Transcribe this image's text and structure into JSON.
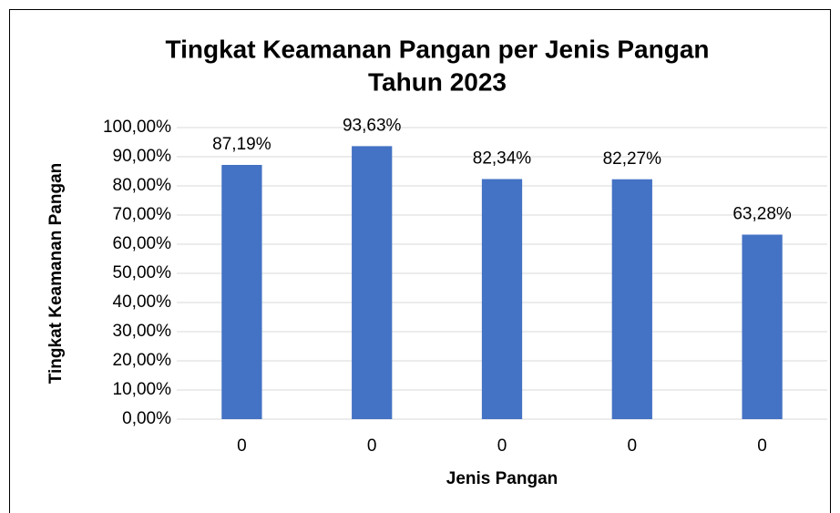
{
  "chart_data": {
    "type": "bar",
    "title": [
      "Tingkat Keamanan Pangan per Jenis Pangan",
      "Tahun 2023"
    ],
    "x_label": "Jenis Pangan",
    "y_label": "Tingkat Keamanan Pangan",
    "categories": [
      "0",
      "0",
      "0",
      "0",
      "0"
    ],
    "values": [
      87.19,
      93.63,
      82.34,
      82.27,
      63.28
    ],
    "value_labels": [
      "87,19%",
      "93,63%",
      "82,34%",
      "82,27%",
      "63,28%"
    ],
    "color": "#4472c4",
    "ylim": [
      0,
      100
    ],
    "yticks": [
      {
        "value": 0,
        "label": "0,00%"
      },
      {
        "value": 10,
        "label": "10,00%"
      },
      {
        "value": 20,
        "label": "20,00%"
      },
      {
        "value": 30,
        "label": "30,00%"
      },
      {
        "value": 40,
        "label": "40,00%"
      },
      {
        "value": 50,
        "label": "50,00%"
      },
      {
        "value": 60,
        "label": "60,00%"
      },
      {
        "value": 70,
        "label": "70,00%"
      },
      {
        "value": 80,
        "label": "80,00%"
      },
      {
        "value": 90,
        "label": "90,00%"
      },
      {
        "value": 100,
        "label": "100,00%"
      }
    ],
    "grid": true
  }
}
